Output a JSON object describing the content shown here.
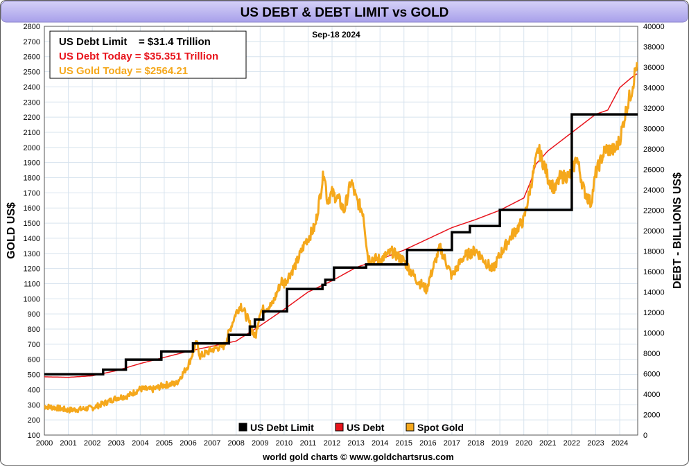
{
  "chart_data": {
    "type": "line",
    "title": "US DEBT & DEBT LIMIT vs GOLD",
    "date_label": "Sep-18  2024",
    "footer": "world gold charts © www.goldchartsrus.com",
    "y_left_label": "GOLD US$",
    "y_right_label": "DEBT - BILLIONS US$",
    "xlim": [
      2000,
      2024.75
    ],
    "y_left_lim": [
      100,
      2800
    ],
    "y_right_lim": [
      0,
      40000
    ],
    "x_ticks": [
      "2000",
      "2001",
      "2002",
      "2003",
      "2004",
      "2005",
      "2006",
      "2007",
      "2008",
      "2009",
      "2010",
      "2011",
      "2012",
      "2013",
      "2014",
      "2015",
      "2016",
      "2017",
      "2018",
      "2019",
      "2020",
      "2021",
      "2022",
      "2023",
      "2024"
    ],
    "y_left_ticks": [
      100,
      200,
      300,
      400,
      500,
      600,
      700,
      800,
      900,
      1000,
      1100,
      1200,
      1300,
      1400,
      1500,
      1600,
      1700,
      1800,
      1900,
      2000,
      2100,
      2200,
      2300,
      2400,
      2500,
      2600,
      2700,
      2800
    ],
    "y_right_ticks": [
      0,
      2000,
      4000,
      6000,
      8000,
      10000,
      12000,
      14000,
      16000,
      18000,
      20000,
      22000,
      24000,
      26000,
      28000,
      30000,
      32000,
      34000,
      36000,
      38000,
      40000
    ],
    "info_box": [
      {
        "text": "US Debt Limit    = $31.4 Trillion",
        "color": "#000000"
      },
      {
        "text": "US Debt Today = $35.351 Trillion",
        "color": "#e8141c"
      },
      {
        "text": "US Gold Today = $2564.21",
        "color": "#f5a81c"
      }
    ],
    "legend": [
      {
        "name": "US Debt Limit",
        "color": "#000000"
      },
      {
        "name": "US Debt",
        "color": "#e8141c"
      },
      {
        "name": "Spot Gold",
        "color": "#f5a81c"
      }
    ],
    "legend_position": "bottom-center",
    "grid": true,
    "colors": {
      "debt_limit": "#000000",
      "debt": "#e8141c",
      "gold": "#f5a81c",
      "title_bar": "#b7b0ee",
      "background": "#ffffff",
      "grid": "#d7e3ee"
    },
    "series": [
      {
        "name": "US Debt Limit",
        "axis": "right",
        "step": true,
        "x": [
          2000,
          2002.45,
          2003.4,
          2004.88,
          2006.2,
          2007.7,
          2008.57,
          2008.78,
          2009.13,
          2010.12,
          2011.6,
          2011.72,
          2012.08,
          2013.42,
          2015.13,
          2017.0,
          2017.75,
          2019.0,
          2022.0,
          2024.75
        ],
        "values": [
          5950,
          6400,
          7384,
          8184,
          8965,
          9815,
          10615,
          11315,
          12104,
          14294,
          14694,
          15194,
          16394,
          16699,
          18113,
          19846,
          20456,
          22030,
          31381,
          31381
        ]
      },
      {
        "name": "US Debt",
        "axis": "right",
        "x": [
          2000,
          2001,
          2002,
          2003,
          2004,
          2005,
          2006,
          2007,
          2008,
          2009,
          2010,
          2011,
          2012,
          2013,
          2014,
          2015,
          2016,
          2017,
          2018,
          2019,
          2020,
          2020.3,
          2020.5,
          2021,
          2022,
          2023,
          2023.5,
          2024,
          2024.5,
          2024.72
        ],
        "values": [
          5700,
          5650,
          5800,
          6300,
          7000,
          7600,
          8200,
          8700,
          9200,
          10700,
          12300,
          14000,
          15100,
          16400,
          17200,
          18100,
          19200,
          20300,
          21100,
          22000,
          23200,
          24900,
          26500,
          27800,
          29600,
          31400,
          31800,
          34000,
          35000,
          35351
        ]
      },
      {
        "name": "Spot Gold",
        "axis": "left",
        "x": [
          2000,
          2000.5,
          2001,
          2001.5,
          2002,
          2002.5,
          2003,
          2003.5,
          2004,
          2004.5,
          2005,
          2005.5,
          2006,
          2006.35,
          2006.5,
          2007,
          2007.5,
          2008,
          2008.2,
          2008.5,
          2008.8,
          2009,
          2009.5,
          2009.9,
          2010,
          2010.5,
          2010.9,
          2011,
          2011.3,
          2011.67,
          2011.8,
          2012,
          2012.3,
          2012.5,
          2012.8,
          2013,
          2013.3,
          2013.5,
          2014,
          2014.5,
          2015,
          2015.5,
          2015.95,
          2016,
          2016.5,
          2017,
          2017.5,
          2018,
          2018.7,
          2019,
          2019.5,
          2020,
          2020.6,
          2020.9,
          2021,
          2021.3,
          2021.5,
          2022,
          2022.2,
          2022.5,
          2022.8,
          2023,
          2023.4,
          2023.8,
          2024,
          2024.3,
          2024.5,
          2024.72
        ],
        "values": [
          290,
          280,
          265,
          270,
          280,
          310,
          345,
          360,
          405,
          400,
          430,
          440,
          560,
          710,
          620,
          665,
          690,
          910,
          960,
          860,
          740,
          920,
          960,
          1120,
          1100,
          1230,
          1380,
          1400,
          1480,
          1850,
          1650,
          1700,
          1650,
          1580,
          1780,
          1660,
          1570,
          1270,
          1260,
          1310,
          1250,
          1130,
          1060,
          1100,
          1340,
          1150,
          1280,
          1320,
          1190,
          1290,
          1420,
          1520,
          1990,
          1860,
          1800,
          1720,
          1800,
          1820,
          1940,
          1720,
          1630,
          1830,
          1990,
          1980,
          2050,
          2270,
          2380,
          2564
        ]
      }
    ]
  }
}
